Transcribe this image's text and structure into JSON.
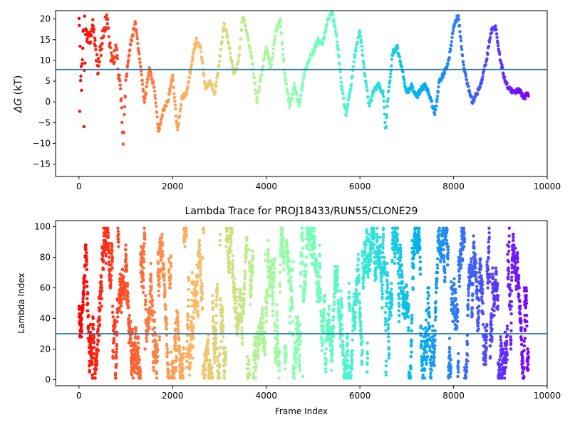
{
  "chart_data": [
    {
      "type": "scatter",
      "title": "",
      "xlabel": "",
      "ylabel": "ΔG (kT)",
      "ylabel_symbol": "ΔG",
      "ylabel_unit": " (kT)",
      "xlim": [
        -500,
        10000
      ],
      "ylim": [
        -18,
        22
      ],
      "xticks": [
        0,
        2000,
        4000,
        6000,
        8000,
        10000
      ],
      "xtick_labels": [
        "0",
        "2000",
        "4000",
        "6000",
        "8000",
        "10000"
      ],
      "yticks": [
        -15,
        -10,
        -5,
        0,
        5,
        10,
        15,
        20
      ],
      "ytick_labels": [
        "−15",
        "−10",
        "−5",
        "0",
        "5",
        "10",
        "15",
        "20"
      ],
      "hline": 7.8,
      "hline_color": "#1f77b4",
      "x_max": 9600,
      "colormap": "rainbow",
      "grid": false,
      "legend": "none",
      "profile": [
        [
          0,
          20
        ],
        [
          60,
          5
        ],
        [
          100,
          20
        ],
        [
          200,
          14
        ],
        [
          300,
          19
        ],
        [
          400,
          8
        ],
        [
          500,
          15
        ],
        [
          600,
          21
        ],
        [
          700,
          9
        ],
        [
          800,
          13
        ],
        [
          900,
          0
        ],
        [
          950,
          -10
        ],
        [
          1000,
          5
        ],
        [
          1100,
          14
        ],
        [
          1200,
          19
        ],
        [
          1300,
          10
        ],
        [
          1400,
          0
        ],
        [
          1500,
          8
        ],
        [
          1600,
          4
        ],
        [
          1700,
          -7
        ],
        [
          1800,
          -2
        ],
        [
          1900,
          0
        ],
        [
          2000,
          7
        ],
        [
          2100,
          -7
        ],
        [
          2200,
          1
        ],
        [
          2300,
          2
        ],
        [
          2400,
          9
        ],
        [
          2500,
          15
        ],
        [
          2600,
          13
        ],
        [
          2700,
          3
        ],
        [
          2800,
          5
        ],
        [
          2900,
          2
        ],
        [
          3000,
          10
        ],
        [
          3100,
          19
        ],
        [
          3200,
          14
        ],
        [
          3300,
          7
        ],
        [
          3400,
          9
        ],
        [
          3500,
          21
        ],
        [
          3600,
          16
        ],
        [
          3700,
          10
        ],
        [
          3800,
          0
        ],
        [
          3900,
          7
        ],
        [
          4000,
          13
        ],
        [
          4100,
          8
        ],
        [
          4200,
          17
        ],
        [
          4300,
          20
        ],
        [
          4400,
          6
        ],
        [
          4500,
          -1
        ],
        [
          4600,
          4
        ],
        [
          4700,
          -1
        ],
        [
          4800,
          6
        ],
        [
          4900,
          10
        ],
        [
          5000,
          12
        ],
        [
          5100,
          15
        ],
        [
          5200,
          14
        ],
        [
          5300,
          19
        ],
        [
          5400,
          22
        ],
        [
          5500,
          16
        ],
        [
          5600,
          5
        ],
        [
          5700,
          -3
        ],
        [
          5800,
          3
        ],
        [
          5900,
          12
        ],
        [
          6000,
          17
        ],
        [
          6100,
          7
        ],
        [
          6200,
          -1
        ],
        [
          6300,
          3
        ],
        [
          6400,
          4
        ],
        [
          6500,
          2
        ],
        [
          6550,
          -7
        ],
        [
          6600,
          1
        ],
        [
          6700,
          12
        ],
        [
          6800,
          13
        ],
        [
          6900,
          8
        ],
        [
          7000,
          2
        ],
        [
          7100,
          4
        ],
        [
          7200,
          1
        ],
        [
          7300,
          3
        ],
        [
          7400,
          4
        ],
        [
          7500,
          1
        ],
        [
          7600,
          -3
        ],
        [
          7700,
          5
        ],
        [
          7800,
          7
        ],
        [
          7900,
          10
        ],
        [
          8000,
          18
        ],
        [
          8100,
          21
        ],
        [
          8200,
          10
        ],
        [
          8300,
          4
        ],
        [
          8400,
          0
        ],
        [
          8500,
          2
        ],
        [
          8600,
          5
        ],
        [
          8700,
          10
        ],
        [
          8800,
          17
        ],
        [
          8900,
          18
        ],
        [
          9000,
          10
        ],
        [
          9100,
          5
        ],
        [
          9200,
          3
        ],
        [
          9300,
          2
        ],
        [
          9400,
          3
        ],
        [
          9500,
          1
        ],
        [
          9600,
          2
        ]
      ]
    },
    {
      "type": "scatter",
      "title": "Lambda Trace for PROJ18433/RUN55/CLONE29",
      "xlabel": "Frame Index",
      "ylabel": "Lambda Index",
      "xlim": [
        -500,
        10000
      ],
      "ylim": [
        -4,
        104
      ],
      "xticks": [
        0,
        2000,
        4000,
        6000,
        8000,
        10000
      ],
      "xtick_labels": [
        "0",
        "2000",
        "4000",
        "6000",
        "8000",
        "10000"
      ],
      "yticks": [
        0,
        20,
        40,
        60,
        80,
        100
      ],
      "ytick_labels": [
        "0",
        "20",
        "40",
        "60",
        "80",
        "100"
      ],
      "hline": 30,
      "hline_color": "#1f77b4",
      "x_max": 9600,
      "n_points": 4800,
      "colormap": "rainbow",
      "grid": false,
      "legend": "none"
    }
  ]
}
